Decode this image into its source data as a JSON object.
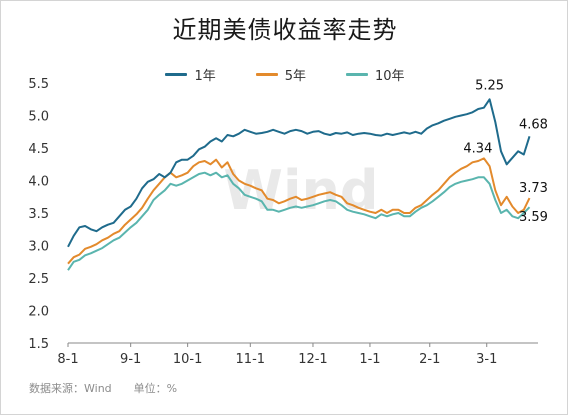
{
  "title": "近期美债收益率走势",
  "source": "数据来源：Wind　　单位：%",
  "watermark": "Wind",
  "chart_data": {
    "type": "line",
    "ylim": [
      1.5,
      5.5
    ],
    "yticks": [
      "1.5",
      "2.0",
      "2.5",
      "3.0",
      "3.5",
      "4.0",
      "4.5",
      "5.0",
      "5.5"
    ],
    "x_ticks": [
      {
        "label": "8-1",
        "x": 0
      },
      {
        "label": "9-1",
        "x": 22
      },
      {
        "label": "10-1",
        "x": 42
      },
      {
        "label": "11-1",
        "x": 64
      },
      {
        "label": "12-1",
        "x": 86
      },
      {
        "label": "1-1",
        "x": 106
      },
      {
        "label": "2-1",
        "x": 127
      },
      {
        "label": "3-1",
        "x": 147
      }
    ],
    "x": [
      0,
      2,
      4,
      6,
      8,
      10,
      12,
      14,
      16,
      18,
      20,
      22,
      24,
      26,
      28,
      30,
      32,
      34,
      36,
      38,
      40,
      42,
      44,
      46,
      48,
      50,
      52,
      54,
      56,
      58,
      60,
      62,
      64,
      66,
      68,
      70,
      72,
      74,
      76,
      78,
      80,
      82,
      84,
      86,
      88,
      90,
      92,
      94,
      96,
      98,
      100,
      102,
      104,
      106,
      108,
      110,
      112,
      114,
      116,
      118,
      120,
      122,
      124,
      126,
      128,
      130,
      132,
      134,
      136,
      138,
      140,
      142,
      144,
      146,
      148,
      150,
      152,
      154,
      156,
      158,
      160,
      162
    ],
    "series": [
      {
        "name": "1年",
        "color": "#1f6b8c",
        "values": [
          2.98,
          3.15,
          3.28,
          3.3,
          3.25,
          3.22,
          3.28,
          3.32,
          3.35,
          3.45,
          3.55,
          3.6,
          3.72,
          3.88,
          3.98,
          4.02,
          4.1,
          4.05,
          4.12,
          4.28,
          4.32,
          4.32,
          4.38,
          4.48,
          4.52,
          4.6,
          4.65,
          4.6,
          4.7,
          4.68,
          4.72,
          4.78,
          4.75,
          4.72,
          4.73,
          4.75,
          4.78,
          4.75,
          4.72,
          4.76,
          4.78,
          4.76,
          4.72,
          4.75,
          4.76,
          4.72,
          4.7,
          4.73,
          4.72,
          4.74,
          4.7,
          4.72,
          4.73,
          4.72,
          4.7,
          4.69,
          4.72,
          4.7,
          4.72,
          4.74,
          4.72,
          4.75,
          4.72,
          4.8,
          4.85,
          4.88,
          4.92,
          4.95,
          4.98,
          5.0,
          5.02,
          5.05,
          5.1,
          5.12,
          5.25,
          4.9,
          4.45,
          4.25,
          4.35,
          4.45,
          4.4,
          4.68
        ]
      },
      {
        "name": "5年",
        "color": "#e38a2c",
        "values": [
          2.72,
          2.82,
          2.86,
          2.95,
          2.98,
          3.02,
          3.08,
          3.12,
          3.18,
          3.22,
          3.32,
          3.4,
          3.48,
          3.58,
          3.72,
          3.85,
          3.95,
          4.05,
          4.12,
          4.05,
          4.08,
          4.12,
          4.22,
          4.28,
          4.3,
          4.25,
          4.32,
          4.2,
          4.28,
          4.1,
          4.0,
          3.95,
          3.92,
          3.88,
          3.85,
          3.72,
          3.7,
          3.65,
          3.68,
          3.72,
          3.75,
          3.7,
          3.72,
          3.75,
          3.78,
          3.8,
          3.82,
          3.78,
          3.75,
          3.65,
          3.62,
          3.58,
          3.55,
          3.52,
          3.5,
          3.55,
          3.5,
          3.55,
          3.55,
          3.5,
          3.5,
          3.58,
          3.62,
          3.7,
          3.78,
          3.85,
          3.95,
          4.05,
          4.12,
          4.18,
          4.22,
          4.28,
          4.3,
          4.34,
          4.22,
          3.85,
          3.62,
          3.75,
          3.6,
          3.5,
          3.55,
          3.73
        ]
      },
      {
        "name": "10年",
        "color": "#5ab5ae",
        "values": [
          2.62,
          2.75,
          2.78,
          2.85,
          2.88,
          2.92,
          2.96,
          3.02,
          3.08,
          3.12,
          3.2,
          3.28,
          3.35,
          3.45,
          3.55,
          3.7,
          3.78,
          3.85,
          3.95,
          3.92,
          3.95,
          4.0,
          4.05,
          4.1,
          4.12,
          4.08,
          4.12,
          4.05,
          4.08,
          3.95,
          3.88,
          3.78,
          3.75,
          3.72,
          3.68,
          3.55,
          3.55,
          3.52,
          3.55,
          3.58,
          3.6,
          3.58,
          3.6,
          3.62,
          3.65,
          3.68,
          3.7,
          3.68,
          3.62,
          3.55,
          3.52,
          3.5,
          3.48,
          3.45,
          3.42,
          3.48,
          3.45,
          3.48,
          3.5,
          3.45,
          3.45,
          3.52,
          3.58,
          3.62,
          3.68,
          3.75,
          3.82,
          3.9,
          3.95,
          3.98,
          4.0,
          4.02,
          4.05,
          4.05,
          3.95,
          3.7,
          3.5,
          3.55,
          3.45,
          3.42,
          3.5,
          3.59
        ]
      }
    ],
    "annotations": [
      {
        "text": "5.25",
        "x": 148,
        "y": 5.25
      },
      {
        "text": "4.68",
        "x": 162,
        "y": 4.68
      },
      {
        "text": "4.34",
        "x": 146,
        "y": 4.34
      },
      {
        "text": "3.73",
        "x": 162,
        "y": 3.73
      },
      {
        "text": "3.59",
        "x": 162,
        "y": 3.59
      }
    ]
  }
}
